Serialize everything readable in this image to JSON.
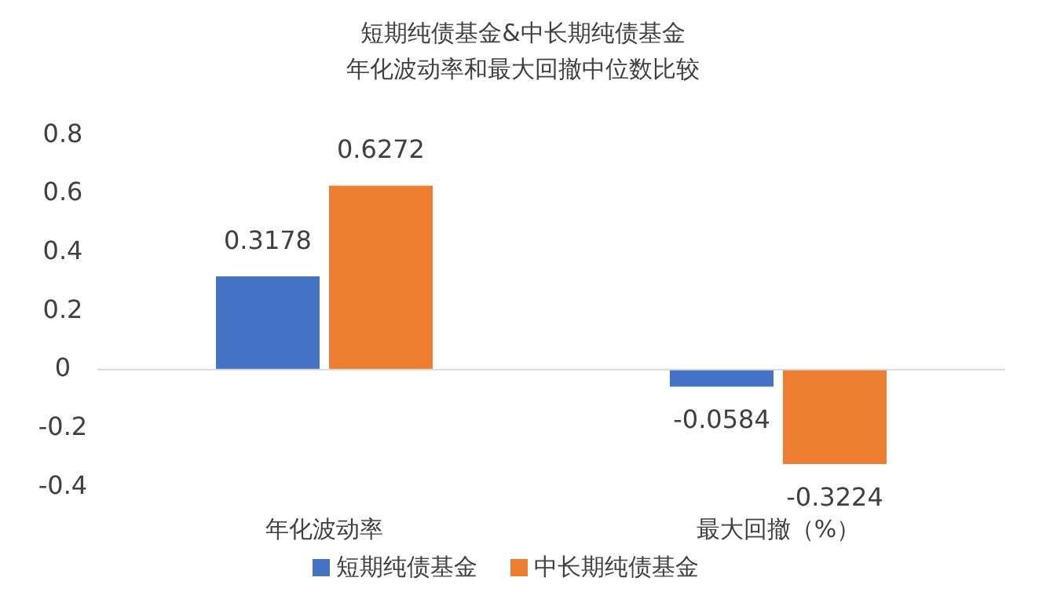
{
  "chart_data": {
    "type": "bar",
    "title": "短期纯债基金&中长期纯债基金",
    "subtitle": "年化波动率和最大回撤中位数比较",
    "categories": [
      "年化波动率",
      "最大回撤（%）"
    ],
    "series": [
      {
        "name": "短期纯债基金",
        "color": "#4472c4",
        "values": [
          0.3178,
          -0.0584
        ]
      },
      {
        "name": "中长期纯债基金",
        "color": "#ed7d31",
        "values": [
          0.6272,
          -0.3224
        ]
      }
    ],
    "ylim": [
      -0.4,
      0.8
    ],
    "yticks": [
      -0.4,
      -0.2,
      0,
      0.2,
      0.4,
      0.6,
      0.8
    ],
    "data_labels": true,
    "legend": "bottom"
  }
}
